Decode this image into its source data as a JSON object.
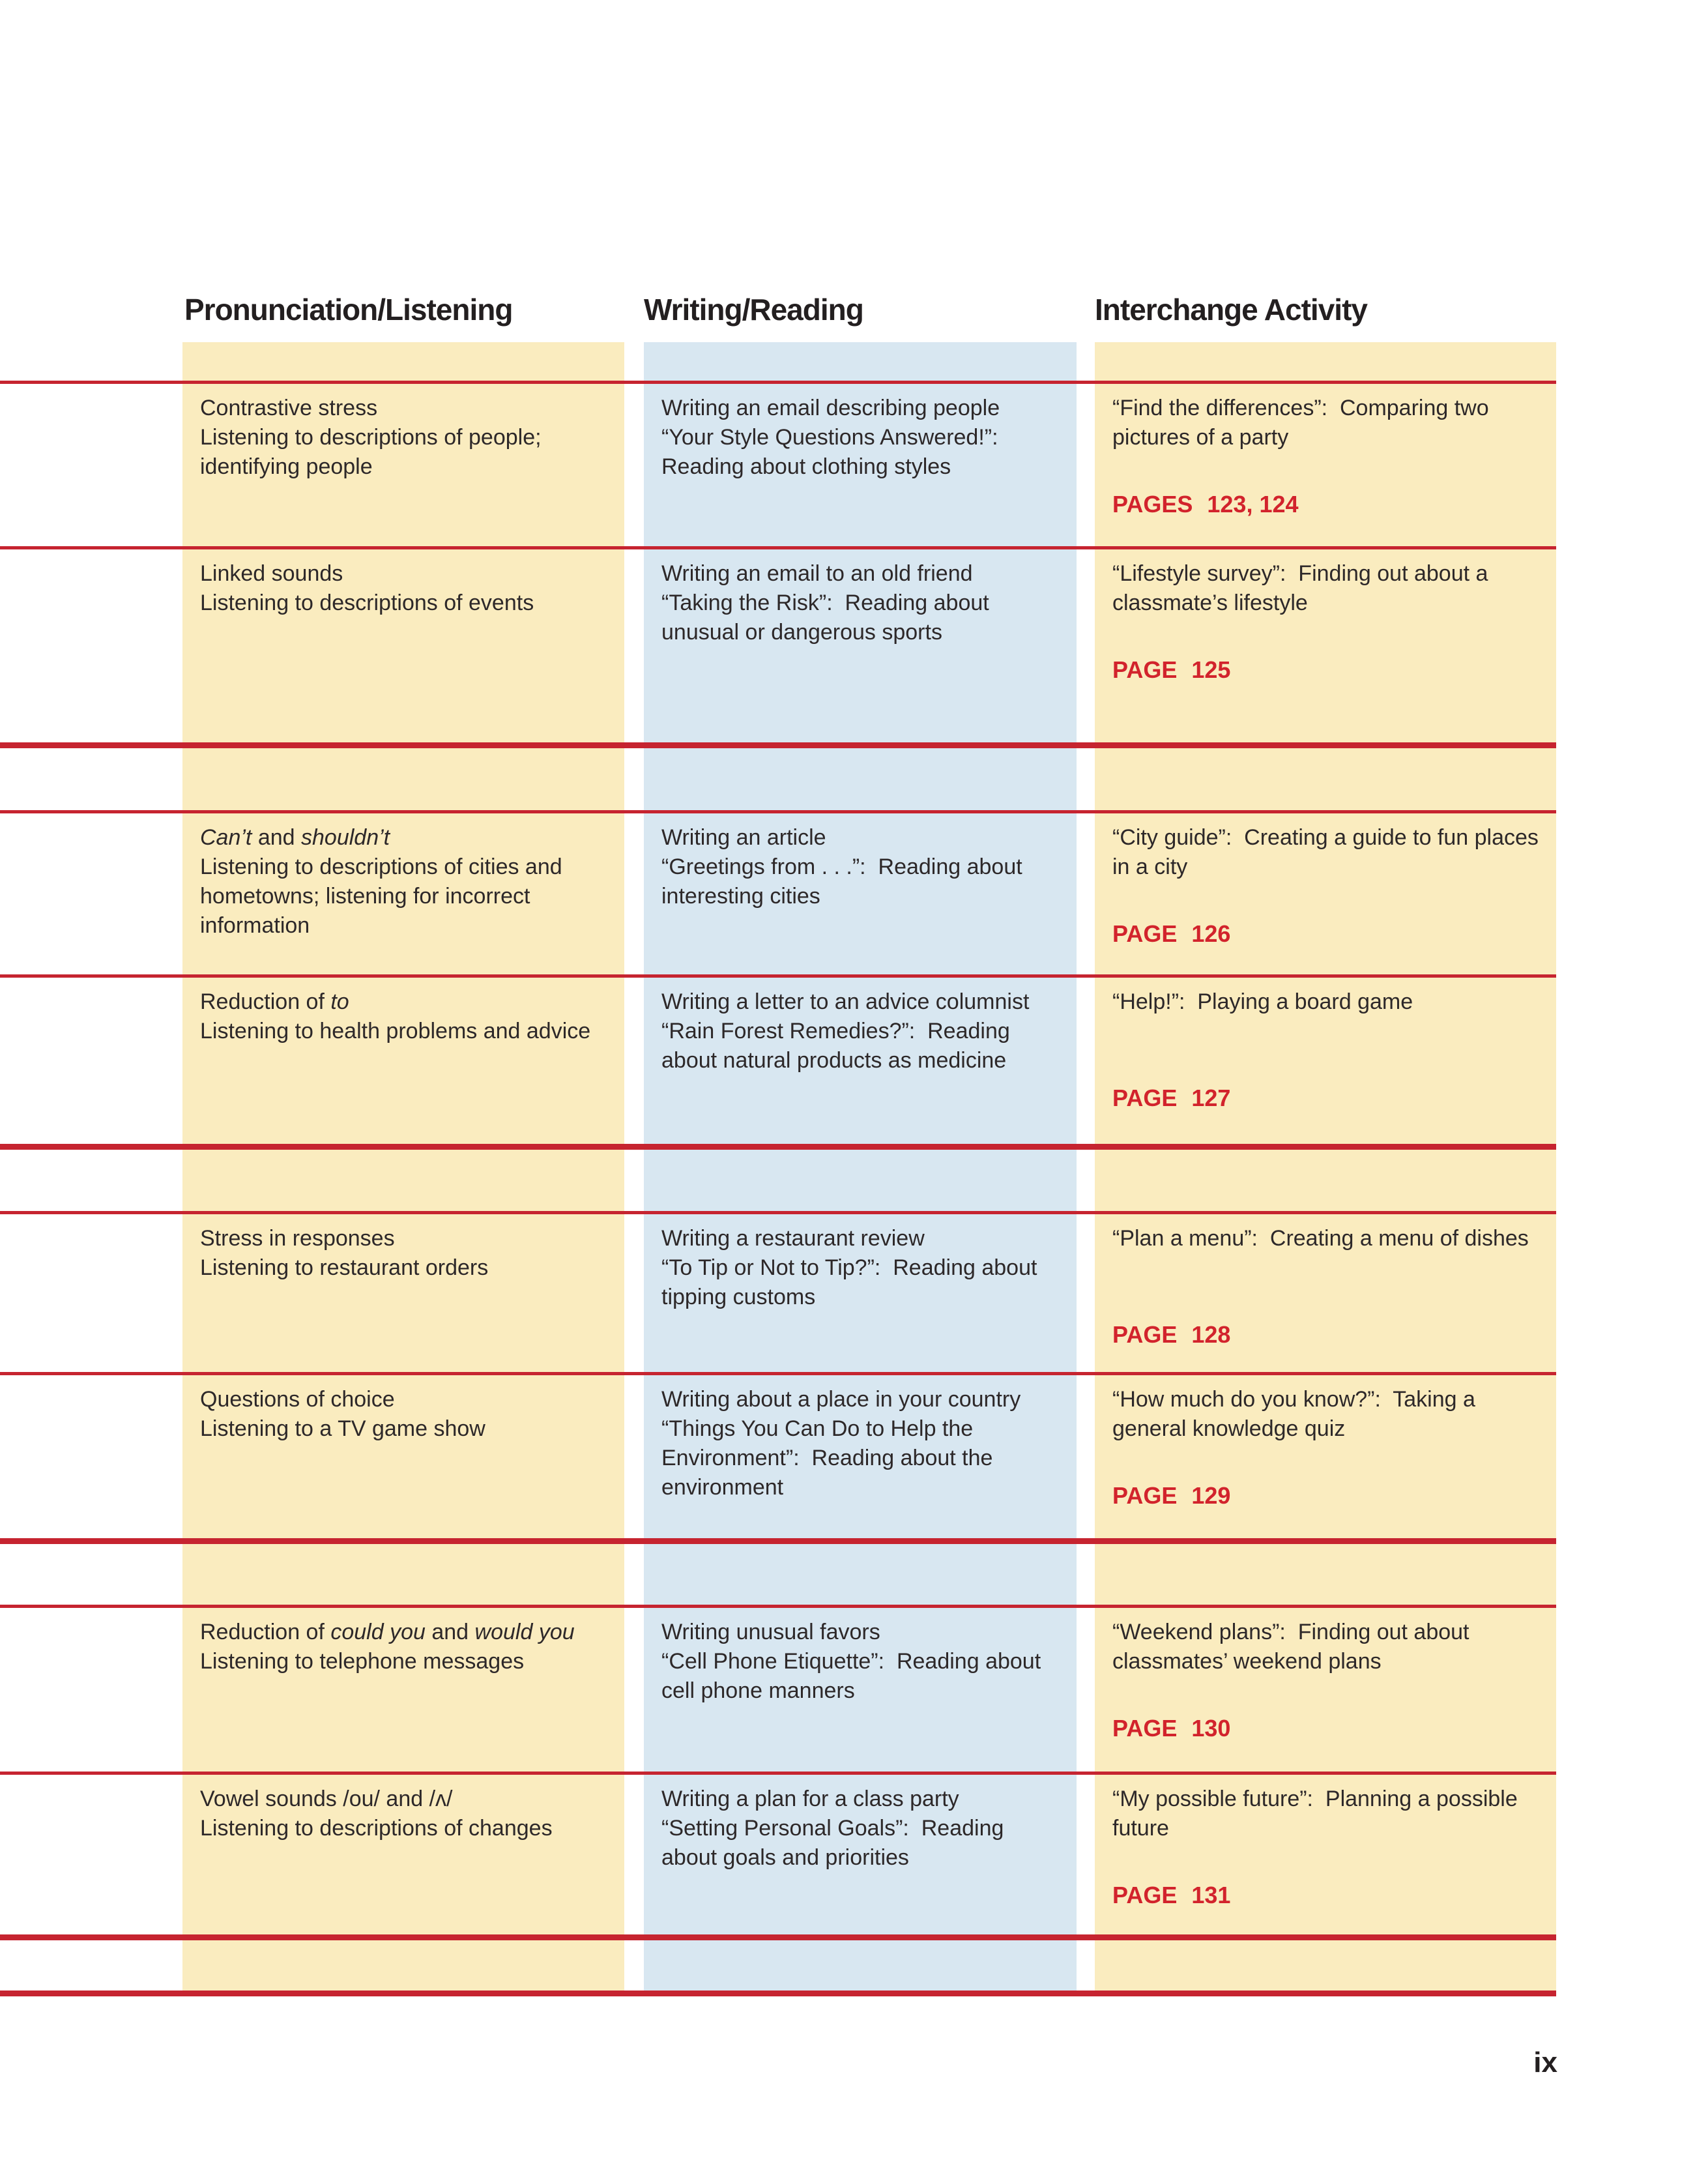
{
  "page": {
    "page_number": "ix",
    "colors": {
      "yellow": "#faecbf",
      "blue": "#d8e7f1",
      "rule_red": "#c62430",
      "page_red": "#d2232c",
      "ink": "#2d2829"
    }
  },
  "table": {
    "columns": [
      {
        "label": "Pronunciation/Listening"
      },
      {
        "label": "Writing/Reading"
      },
      {
        "label": "Interchange Activity"
      }
    ],
    "rows": [
      {
        "pronunciation": [
          [
            {
              "t": "Contrastive stress"
            }
          ],
          [
            {
              "t": "Listening to descriptions of people; identifying people"
            }
          ]
        ],
        "writing": [
          [
            {
              "t": "Writing an email describing people"
            }
          ],
          [
            {
              "t": "“Your Style Questions Answered!”:  Reading about clothing styles"
            }
          ]
        ],
        "interchange": {
          "activity": [
            {
              "t": "“Find the differences”:  Comparing two pictures of a party"
            }
          ],
          "page_label": "PAGES",
          "page_numbers": "123, 124"
        }
      },
      {
        "pronunciation": [
          [
            {
              "t": "Linked sounds"
            }
          ],
          [
            {
              "t": "Listening to descriptions of events"
            }
          ]
        ],
        "writing": [
          [
            {
              "t": "Writing an email to an old friend"
            }
          ],
          [
            {
              "t": "“Taking the Risk”:  Reading about unusual or dangerous sports"
            }
          ]
        ],
        "interchange": {
          "activity": [
            {
              "t": "“Lifestyle survey”:  Finding out about a classmate’s lifestyle"
            }
          ],
          "page_label": "PAGE",
          "page_numbers": "125"
        }
      },
      {
        "pronunciation": [
          [
            {
              "t": "Can’t",
              "italic": true
            },
            {
              "t": " and "
            },
            {
              "t": "shouldn’t",
              "italic": true
            }
          ],
          [
            {
              "t": "Listening to descriptions of cities and hometowns; listening for incorrect information"
            }
          ]
        ],
        "writing": [
          [
            {
              "t": "Writing an article"
            }
          ],
          [
            {
              "t": "“Greetings from . . .”:  Reading about interesting cities"
            }
          ]
        ],
        "interchange": {
          "activity": [
            {
              "t": "“City guide”:  Creating a guide to fun places in a city"
            }
          ],
          "page_label": "PAGE",
          "page_numbers": "126"
        }
      },
      {
        "pronunciation": [
          [
            {
              "t": "Reduction of "
            },
            {
              "t": "to",
              "italic": true
            }
          ],
          [
            {
              "t": "Listening to health problems and advice"
            }
          ]
        ],
        "writing": [
          [
            {
              "t": "Writing a letter to an advice columnist"
            }
          ],
          [
            {
              "t": "“Rain Forest Remedies?”:  Reading about natural products as medicine"
            }
          ]
        ],
        "interchange": {
          "activity": [
            {
              "t": "“Help!”:  Playing a board game"
            }
          ],
          "page_label": "PAGE",
          "page_numbers": "127"
        }
      },
      {
        "pronunciation": [
          [
            {
              "t": "Stress in responses"
            }
          ],
          [
            {
              "t": "Listening to restaurant orders"
            }
          ]
        ],
        "writing": [
          [
            {
              "t": "Writing a restaurant review"
            }
          ],
          [
            {
              "t": "“To Tip or Not to Tip?”:  Reading about tipping customs"
            }
          ]
        ],
        "interchange": {
          "activity": [
            {
              "t": "“Plan a menu”:  Creating a menu of dishes"
            }
          ],
          "page_label": "PAGE",
          "page_numbers": "128"
        }
      },
      {
        "pronunciation": [
          [
            {
              "t": "Questions of choice"
            }
          ],
          [
            {
              "t": "Listening to a TV game show"
            }
          ]
        ],
        "writing": [
          [
            {
              "t": "Writing about a place in your country"
            }
          ],
          [
            {
              "t": "“Things You Can Do to Help the Environment”:  Reading about the environment"
            }
          ]
        ],
        "interchange": {
          "activity": [
            {
              "t": "“How much do you know?”:  Taking a general knowledge quiz"
            }
          ],
          "page_label": "PAGE",
          "page_numbers": "129"
        }
      },
      {
        "pronunciation": [
          [
            {
              "t": "Reduction of "
            },
            {
              "t": "could you",
              "italic": true
            },
            {
              "t": " and "
            },
            {
              "t": "would you",
              "italic": true
            }
          ],
          [
            {
              "t": "Listening to telephone messages"
            }
          ]
        ],
        "writing": [
          [
            {
              "t": "Writing unusual favors"
            }
          ],
          [
            {
              "t": "“Cell Phone Etiquette”:  Reading about cell phone manners"
            }
          ]
        ],
        "interchange": {
          "activity": [
            {
              "t": "“Weekend plans”:  Finding out about classmates’ weekend plans"
            }
          ],
          "page_label": "PAGE",
          "page_numbers": "130"
        }
      },
      {
        "pronunciation": [
          [
            {
              "t": "Vowel sounds /ou/ and /ʌ/"
            }
          ],
          [
            {
              "t": "Listening to descriptions of changes"
            }
          ]
        ],
        "writing": [
          [
            {
              "t": "Writing a plan for a class party"
            }
          ],
          [
            {
              "t": "“Setting Personal Goals”:  Reading about goals and priorities"
            }
          ]
        ],
        "interchange": {
          "activity": [
            {
              "t": "“My possible future”:  Planning a possible future"
            }
          ],
          "page_label": "PAGE",
          "page_numbers": "131"
        }
      }
    ]
  }
}
